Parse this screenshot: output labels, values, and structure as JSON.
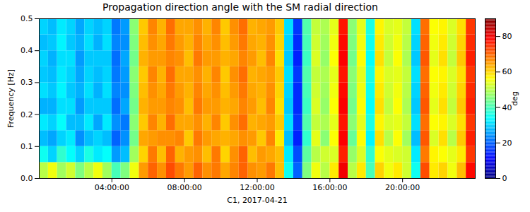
{
  "chart_data": {
    "type": "heatmap",
    "title": "Propagation direction angle with the SM radial direction",
    "x_label": "C1, 2017-04-21",
    "y_label": "Frequency [Hz]",
    "xlim": [
      0,
      24
    ],
    "xticks": [
      {
        "value": 4,
        "label": "04:00:00"
      },
      {
        "value": 8,
        "label": "08:00:00"
      },
      {
        "value": 12,
        "label": "12:00:00"
      },
      {
        "value": 16,
        "label": "16:00:00"
      },
      {
        "value": 20,
        "label": "20:00:00"
      }
    ],
    "ylim": [
      0,
      0.5
    ],
    "yticks": [
      {
        "value": 0,
        "label": "0.0"
      },
      0.1,
      0.2,
      0.3,
      0.4,
      0.5
    ],
    "time_edges": [
      0,
      0.5,
      1,
      1.5,
      2,
      2.5,
      3,
      3.5,
      4,
      4.5,
      5,
      5.5,
      6,
      6.5,
      7,
      7.5,
      8,
      8.5,
      9,
      9.5,
      10,
      10.5,
      11,
      11.5,
      12,
      12.5,
      13,
      13.5,
      14,
      14.5,
      15,
      15.5,
      16,
      16.5,
      17,
      17.5,
      18,
      18.5,
      19,
      19.5,
      20,
      20.5,
      21,
      21.5,
      22,
      22.5,
      23,
      23.5,
      24
    ],
    "freq_edges": [
      0,
      0.05,
      0.1,
      0.15,
      0.2,
      0.25,
      0.3,
      0.35,
      0.4,
      0.45,
      0.5
    ],
    "cells": [
      [
        50,
        55,
        48,
        52,
        45,
        50,
        55,
        48,
        40,
        45,
        55,
        65,
        70,
        66,
        72,
        68,
        65,
        70,
        66,
        68,
        64,
        67,
        70,
        66,
        65,
        68,
        62,
        35,
        20,
        45,
        55,
        50,
        58,
        80,
        50,
        58,
        40,
        60,
        55,
        58,
        52,
        35,
        72,
        58,
        60,
        55,
        62,
        78
      ],
      [
        35,
        30,
        38,
        34,
        30,
        36,
        32,
        34,
        25,
        28,
        48,
        60,
        68,
        62,
        70,
        63,
        65,
        66,
        62,
        68,
        60,
        66,
        70,
        62,
        65,
        64,
        62,
        32,
        18,
        42,
        50,
        52,
        53,
        76,
        47,
        53,
        38,
        56,
        54,
        53,
        52,
        32,
        68,
        57,
        56,
        54,
        58,
        74
      ],
      [
        28,
        26,
        30,
        32,
        24,
        28,
        30,
        28,
        20,
        24,
        44,
        64,
        65,
        66,
        66,
        67,
        61,
        68,
        65,
        64,
        63,
        64,
        66,
        65,
        61,
        67,
        58,
        28,
        14,
        38,
        54,
        46,
        56,
        79,
        43,
        56,
        33,
        59,
        50,
        56,
        48,
        28,
        71,
        53,
        59,
        50,
        61,
        76
      ],
      [
        32,
        30,
        34,
        28,
        28,
        32,
        26,
        32,
        24,
        22,
        46,
        61,
        67,
        63,
        69,
        64,
        64,
        66,
        63,
        67,
        61,
        66,
        69,
        63,
        64,
        65,
        61,
        31,
        16,
        41,
        51,
        49,
        54,
        77,
        46,
        54,
        36,
        57,
        53,
        54,
        51,
        31,
        69,
        56,
        57,
        53,
        59,
        74
      ],
      [
        27,
        27,
        31,
        31,
        25,
        29,
        29,
        29,
        21,
        26,
        44,
        63,
        65,
        65,
        67,
        66,
        62,
        68,
        65,
        65,
        63,
        64,
        67,
        65,
        62,
        67,
        59,
        29,
        15,
        39,
        53,
        47,
        56,
        79,
        44,
        56,
        34,
        59,
        51,
        56,
        49,
        29,
        71,
        54,
        59,
        51,
        61,
        76
      ],
      [
        31,
        29,
        33,
        29,
        27,
        31,
        27,
        31,
        23,
        24,
        45,
        62,
        66,
        64,
        68,
        65,
        63,
        67,
        64,
        66,
        62,
        65,
        68,
        64,
        63,
        66,
        60,
        30,
        15,
        40,
        52,
        48,
        55,
        78,
        45,
        55,
        35,
        58,
        52,
        55,
        50,
        30,
        70,
        55,
        58,
        52,
        60,
        75
      ],
      [
        29,
        28,
        32,
        30,
        26,
        30,
        28,
        30,
        22,
        25,
        46,
        61,
        67,
        63,
        69,
        64,
        64,
        66,
        63,
        67,
        61,
        66,
        69,
        63,
        64,
        65,
        61,
        31,
        16,
        41,
        51,
        49,
        54,
        77,
        46,
        54,
        36,
        57,
        53,
        54,
        51,
        31,
        69,
        56,
        57,
        53,
        59,
        74
      ],
      [
        30,
        27,
        31,
        31,
        25,
        29,
        29,
        29,
        21,
        26,
        44,
        63,
        65,
        65,
        67,
        66,
        62,
        68,
        65,
        65,
        63,
        64,
        67,
        65,
        62,
        67,
        59,
        29,
        14,
        39,
        53,
        47,
        56,
        79,
        44,
        56,
        34,
        59,
        51,
        56,
        49,
        29,
        71,
        54,
        59,
        51,
        61,
        76
      ],
      [
        28,
        29,
        33,
        29,
        27,
        31,
        27,
        31,
        23,
        24,
        45,
        62,
        66,
        64,
        68,
        65,
        63,
        67,
        64,
        66,
        62,
        65,
        68,
        64,
        63,
        66,
        60,
        30,
        15,
        40,
        52,
        48,
        55,
        78,
        45,
        55,
        35,
        58,
        52,
        55,
        50,
        30,
        70,
        55,
        58,
        52,
        60,
        75
      ],
      [
        30,
        28,
        32,
        30,
        26,
        30,
        28,
        30,
        22,
        25,
        46,
        61,
        67,
        63,
        69,
        64,
        64,
        66,
        63,
        67,
        61,
        66,
        69,
        63,
        64,
        65,
        61,
        31,
        16,
        41,
        51,
        49,
        54,
        77,
        46,
        54,
        36,
        57,
        53,
        54,
        51,
        31,
        69,
        56,
        57,
        53,
        59,
        74
      ]
    ],
    "colorbar": {
      "lim": [
        0,
        90
      ],
      "ticks": [
        0,
        20,
        40,
        60,
        80
      ],
      "label": "deg"
    }
  }
}
